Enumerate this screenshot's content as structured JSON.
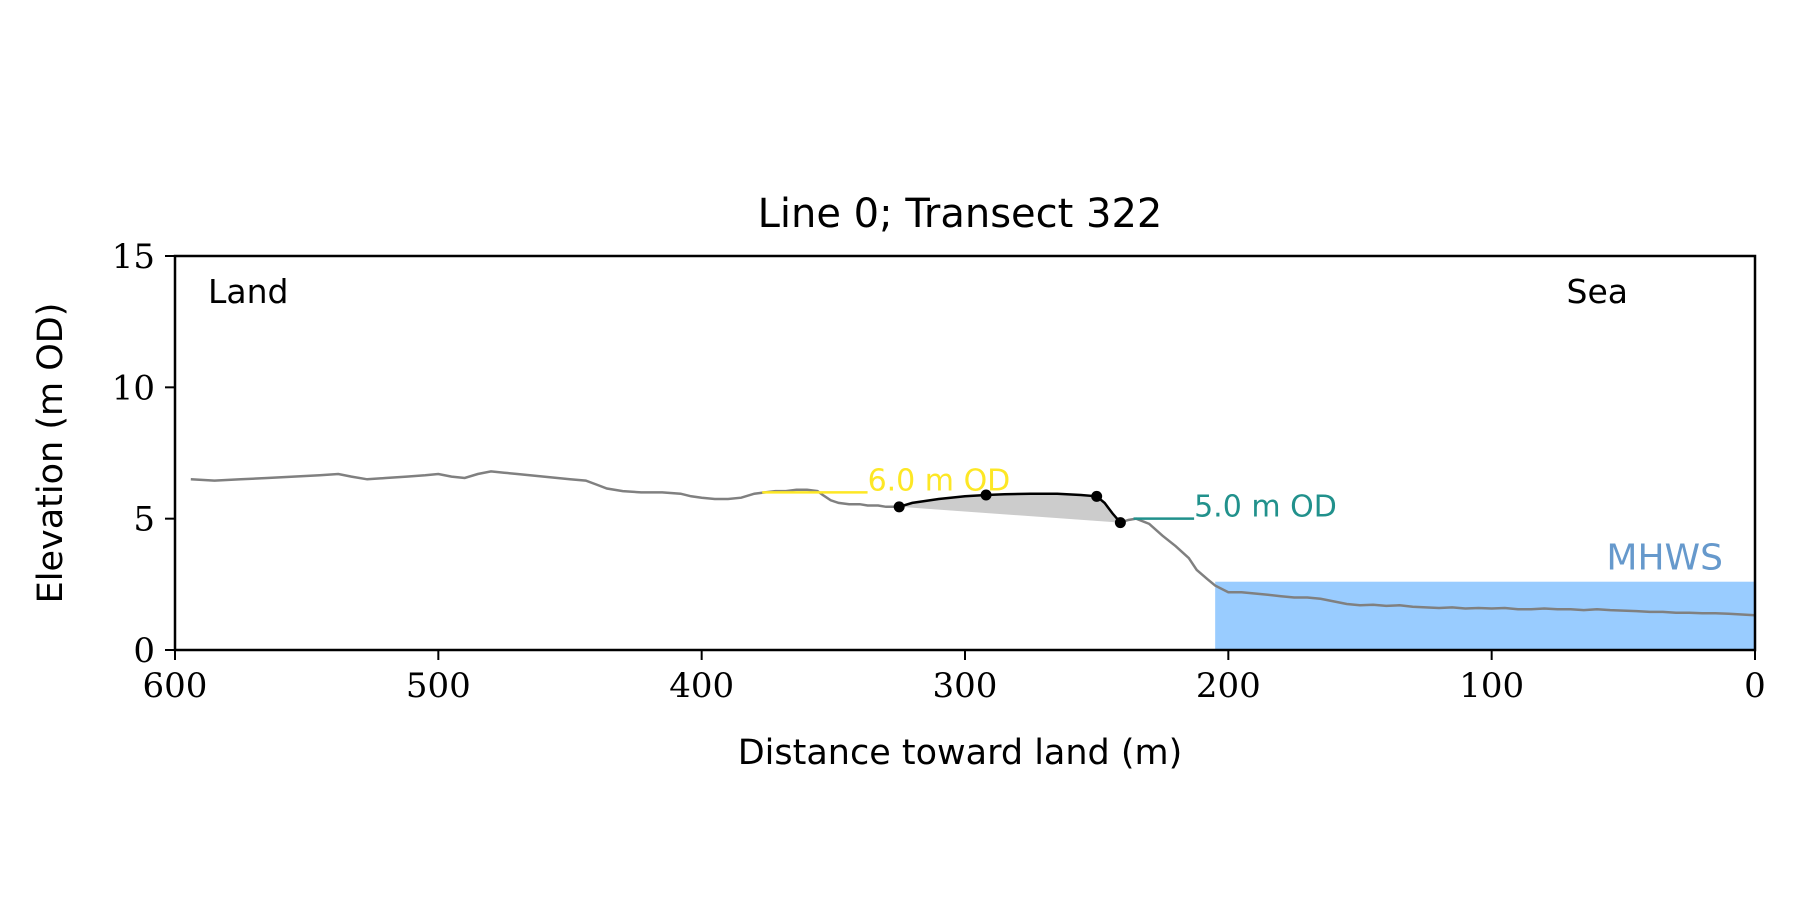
{
  "chart_data": {
    "type": "line",
    "title": "Line 0; Transect 322",
    "xlabel": "Distance toward land (m)",
    "ylabel": "Elevation (m OD)",
    "xlim": [
      600,
      0
    ],
    "ylim": [
      0,
      15
    ],
    "xticks": [
      600,
      500,
      400,
      300,
      200,
      100,
      0
    ],
    "yticks": [
      0,
      5,
      10,
      15
    ],
    "grid": false,
    "corner_labels": {
      "land": "Land",
      "sea": "Sea"
    },
    "colors": {
      "profile": "#808080",
      "dune": "#000000",
      "fill": "#cccccc",
      "level_6": "#fde725",
      "level_5": "#21918c",
      "mhws": "#99ccff",
      "mhws_text": "#6699cc"
    },
    "profile": {
      "x": [
        594,
        585,
        575,
        565,
        555,
        545,
        538,
        533,
        527,
        520,
        512,
        505,
        500,
        495,
        490,
        485,
        480,
        475,
        470,
        460,
        450,
        444,
        440,
        436,
        430,
        423,
        415,
        408,
        404,
        400,
        395,
        390,
        385,
        380,
        376,
        372,
        368,
        364,
        360,
        356,
        354,
        351,
        348,
        344,
        340,
        337,
        333,
        330,
        327,
        325
      ],
      "y": [
        6.5,
        6.45,
        6.5,
        6.55,
        6.6,
        6.65,
        6.7,
        6.6,
        6.5,
        6.55,
        6.6,
        6.65,
        6.7,
        6.6,
        6.55,
        6.7,
        6.8,
        6.75,
        6.7,
        6.6,
        6.5,
        6.45,
        6.3,
        6.15,
        6.05,
        6.0,
        6.0,
        5.95,
        5.85,
        5.8,
        5.75,
        5.75,
        5.8,
        5.95,
        6.0,
        6.05,
        6.05,
        6.1,
        6.1,
        6.05,
        5.9,
        5.7,
        5.6,
        5.55,
        5.55,
        5.5,
        5.5,
        5.45,
        5.45,
        5.45
      ]
    },
    "profile_sea": {
      "x": [
        241,
        238,
        235,
        230,
        225,
        220,
        215,
        212,
        208,
        205,
        200,
        195,
        190,
        185,
        180,
        175,
        170,
        165,
        160,
        155,
        150,
        145,
        140,
        135,
        130,
        125,
        120,
        115,
        110,
        105,
        100,
        95,
        90,
        85,
        80,
        75,
        70,
        65,
        60,
        55,
        50,
        45,
        40,
        35,
        30,
        25,
        20,
        15,
        10,
        5,
        0
      ],
      "y": [
        4.85,
        4.95,
        5.0,
        4.8,
        4.35,
        3.95,
        3.5,
        3.05,
        2.7,
        2.45,
        2.2,
        2.2,
        2.15,
        2.1,
        2.05,
        2.0,
        2.0,
        1.95,
        1.85,
        1.75,
        1.7,
        1.72,
        1.68,
        1.7,
        1.65,
        1.62,
        1.6,
        1.62,
        1.58,
        1.6,
        1.58,
        1.6,
        1.55,
        1.55,
        1.58,
        1.55,
        1.55,
        1.52,
        1.55,
        1.52,
        1.5,
        1.48,
        1.45,
        1.45,
        1.42,
        1.42,
        1.4,
        1.4,
        1.38,
        1.35,
        1.32
      ]
    },
    "dune": {
      "x": [
        325,
        320,
        310,
        300,
        292,
        285,
        275,
        265,
        256,
        250,
        247,
        244,
        241
      ],
      "y": [
        5.45,
        5.6,
        5.75,
        5.85,
        5.9,
        5.93,
        5.95,
        5.95,
        5.9,
        5.85,
        5.6,
        5.2,
        4.85
      ]
    },
    "dune_points": [
      {
        "x": 325,
        "y": 5.45
      },
      {
        "x": 292,
        "y": 5.9
      },
      {
        "x": 250,
        "y": 5.85
      },
      {
        "x": 241,
        "y": 4.85
      }
    ],
    "levels": [
      {
        "label": "6.0 m OD",
        "y": 6.0,
        "x_start": 377,
        "x_end": 337
      },
      {
        "label": "5.0 m OD",
        "y": 5.0,
        "x_start": 236,
        "x_end": 213
      }
    ],
    "mhws": {
      "label": "MHWS",
      "y": 2.6,
      "x_start": 205,
      "x_end": 0
    }
  }
}
